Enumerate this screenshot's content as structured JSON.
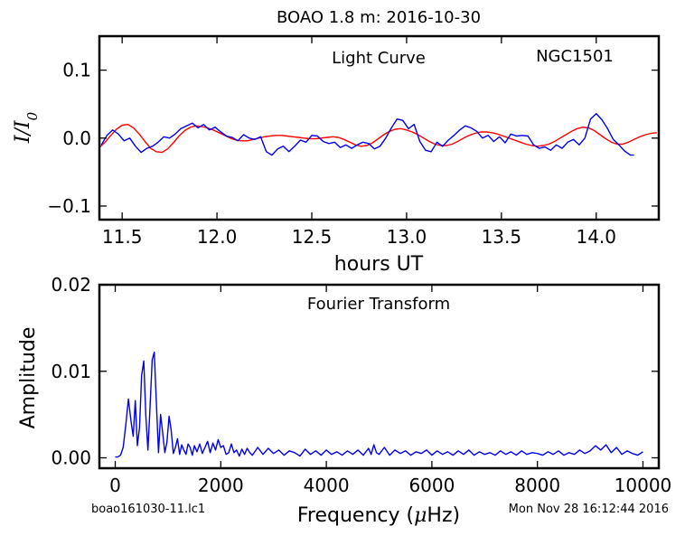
{
  "figure": {
    "title": "BOAO 1.8 m:  2016-10-30",
    "footer_left": "boao161030-11.lc1",
    "footer_right": "Mon Nov 28 16:12:44 2016"
  },
  "chart_data": [
    {
      "type": "line",
      "title": "Light Curve",
      "annotation": "NGC1501",
      "xlabel": "hours UT",
      "ylabel": "I/I0",
      "xlim": [
        11.38,
        14.33
      ],
      "ylim": [
        -0.12,
        0.15
      ],
      "xticks": [
        11.5,
        12.0,
        12.5,
        13.0,
        13.5,
        14.0
      ],
      "xtick_labels": [
        "11.5",
        "12.0",
        "12.5",
        "13.0",
        "13.5",
        "14.0"
      ],
      "yticks": [
        0.1,
        0.0,
        -0.1
      ],
      "ytick_labels": [
        "0.1",
        "0.0",
        "−0.1"
      ],
      "grid": false,
      "colors": {
        "data": "#0000ee",
        "model": "#ff0000"
      },
      "series": [
        {
          "role": "data",
          "x": [
            11.39,
            11.42,
            11.45,
            11.48,
            11.51,
            11.54,
            11.57,
            11.6,
            11.63,
            11.66,
            11.69,
            11.72,
            11.75,
            11.78,
            11.81,
            11.84,
            11.87,
            11.9,
            11.93,
            11.96,
            11.99,
            12.02,
            12.05,
            12.08,
            12.11,
            12.14,
            12.17,
            12.2,
            12.23,
            12.26,
            12.29,
            12.32,
            12.35,
            12.38,
            12.41,
            12.44,
            12.47,
            12.5,
            12.53,
            12.56,
            12.59,
            12.62,
            12.65,
            12.68,
            12.71,
            12.74,
            12.77,
            12.8,
            12.83,
            12.86,
            12.89,
            12.92,
            12.95,
            12.98,
            13.01,
            13.04,
            13.07,
            13.1,
            13.13,
            13.16,
            13.19,
            13.22,
            13.25,
            13.28,
            13.31,
            13.34,
            13.37,
            13.4,
            13.43,
            13.46,
            13.49,
            13.52,
            13.55,
            13.58,
            13.61,
            13.64,
            13.67,
            13.7,
            13.73,
            13.76,
            13.79,
            13.82,
            13.85,
            13.88,
            13.91,
            13.94,
            13.97,
            14.0,
            14.03,
            14.06,
            14.09,
            14.12,
            14.15,
            14.18,
            14.2
          ],
          "y": [
            -0.01,
            0.004,
            0.012,
            0.006,
            -0.004,
            0.0,
            -0.012,
            -0.021,
            -0.015,
            -0.012,
            -0.006,
            0.002,
            0.0,
            0.006,
            0.014,
            0.018,
            0.022,
            0.015,
            0.02,
            0.012,
            0.016,
            0.009,
            0.003,
            0.001,
            -0.004,
            0.005,
            0.0,
            -0.002,
            0.002,
            -0.02,
            -0.025,
            -0.016,
            -0.012,
            -0.02,
            -0.012,
            -0.003,
            -0.006,
            0.004,
            0.003,
            -0.005,
            -0.008,
            -0.006,
            -0.014,
            -0.01,
            -0.015,
            -0.01,
            -0.006,
            -0.008,
            -0.016,
            -0.012,
            0.0,
            0.015,
            0.028,
            0.026,
            0.014,
            0.02,
            -0.005,
            -0.018,
            -0.02,
            -0.006,
            -0.012,
            -0.003,
            0.004,
            0.012,
            0.018,
            0.015,
            0.01,
            0.0,
            0.004,
            -0.005,
            0.002,
            -0.007,
            0.006,
            0.003,
            0.004,
            0.003,
            -0.01,
            -0.015,
            -0.013,
            -0.018,
            -0.01,
            -0.015,
            -0.006,
            -0.002,
            -0.01,
            0.0,
            0.028,
            0.036,
            0.027,
            0.014,
            -0.002,
            -0.01,
            -0.019,
            -0.025,
            -0.025
          ]
        },
        {
          "role": "model",
          "x": [
            11.38,
            11.41,
            11.44,
            11.47,
            11.5,
            11.53,
            11.56,
            11.59,
            11.62,
            11.65,
            11.68,
            11.71,
            11.74,
            11.77,
            11.8,
            11.83,
            11.86,
            11.89,
            11.92,
            11.95,
            11.98,
            12.01,
            12.04,
            12.07,
            12.1,
            12.13,
            12.16,
            12.19,
            12.22,
            12.25,
            12.28,
            12.31,
            12.34,
            12.37,
            12.4,
            12.43,
            12.46,
            12.49,
            12.52,
            12.55,
            12.58,
            12.61,
            12.64,
            12.67,
            12.7,
            12.73,
            12.76,
            12.79,
            12.82,
            12.85,
            12.88,
            12.91,
            12.94,
            12.97,
            13.0,
            13.03,
            13.06,
            13.09,
            13.12,
            13.15,
            13.18,
            13.21,
            13.24,
            13.27,
            13.3,
            13.33,
            13.36,
            13.39,
            13.42,
            13.45,
            13.48,
            13.51,
            13.54,
            13.57,
            13.6,
            13.63,
            13.66,
            13.69,
            13.72,
            13.75,
            13.78,
            13.81,
            13.84,
            13.87,
            13.9,
            13.93,
            13.96,
            13.99,
            14.02,
            14.05,
            14.08,
            14.11,
            14.14,
            14.17,
            14.2,
            14.23,
            14.26,
            14.29,
            14.32
          ],
          "y": [
            -0.014,
            -0.006,
            0.004,
            0.013,
            0.019,
            0.02,
            0.015,
            0.006,
            -0.005,
            -0.015,
            -0.02,
            -0.021,
            -0.016,
            -0.007,
            0.003,
            0.011,
            0.016,
            0.018,
            0.017,
            0.015,
            0.012,
            0.008,
            0.004,
            0.0,
            -0.003,
            -0.004,
            -0.004,
            -0.002,
            0.0,
            0.002,
            0.003,
            0.004,
            0.004,
            0.003,
            0.002,
            0.001,
            0.0,
            -0.001,
            -0.001,
            0.0,
            0.001,
            0.002,
            0.001,
            -0.002,
            -0.006,
            -0.01,
            -0.012,
            -0.011,
            -0.007,
            -0.001,
            0.005,
            0.01,
            0.013,
            0.014,
            0.012,
            0.009,
            0.005,
            0.0,
            -0.005,
            -0.009,
            -0.011,
            -0.011,
            -0.009,
            -0.005,
            0.0,
            0.004,
            0.007,
            0.009,
            0.009,
            0.008,
            0.006,
            0.003,
            0.0,
            -0.003,
            -0.006,
            -0.009,
            -0.011,
            -0.012,
            -0.011,
            -0.009,
            -0.005,
            0.0,
            0.005,
            0.01,
            0.014,
            0.016,
            0.015,
            0.011,
            0.005,
            -0.001,
            -0.006,
            -0.009,
            -0.009,
            -0.006,
            -0.002,
            0.002,
            0.005,
            0.007,
            0.008
          ]
        }
      ]
    },
    {
      "type": "line",
      "title": "Fourier Transform",
      "xlabel": "Frequency (μHz)",
      "ylabel": "Amplitude",
      "xlim": [
        -300,
        10300
      ],
      "ylim": [
        -0.0012,
        0.02
      ],
      "xticks": [
        0,
        2000,
        4000,
        6000,
        8000,
        10000
      ],
      "xtick_labels": [
        "0",
        "2000",
        "4000",
        "6000",
        "8000",
        "10000"
      ],
      "yticks": [
        0.02,
        0.01,
        0.0
      ],
      "ytick_labels": [
        "0.02",
        "0.01",
        "0.00"
      ],
      "grid": false,
      "colors": {
        "data": "#0000ee"
      },
      "series": [
        {
          "role": "data",
          "x": [
            0,
            50,
            100,
            150,
            200,
            250,
            300,
            340,
            380,
            420,
            460,
            500,
            540,
            580,
            620,
            660,
            700,
            740,
            780,
            820,
            860,
            900,
            940,
            980,
            1020,
            1060,
            1100,
            1140,
            1180,
            1220,
            1260,
            1300,
            1340,
            1380,
            1420,
            1460,
            1500,
            1550,
            1600,
            1650,
            1700,
            1750,
            1800,
            1850,
            1900,
            1950,
            2000,
            2050,
            2100,
            2150,
            2200,
            2250,
            2300,
            2350,
            2400,
            2450,
            2500,
            2550,
            2600,
            2700,
            2800,
            2900,
            3000,
            3100,
            3200,
            3300,
            3400,
            3500,
            3600,
            3700,
            3800,
            3900,
            4000,
            4100,
            4200,
            4300,
            4400,
            4500,
            4600,
            4700,
            4800,
            4850,
            4900,
            4950,
            5000,
            5100,
            5200,
            5300,
            5400,
            5500,
            5600,
            5700,
            5800,
            5900,
            6000,
            6100,
            6200,
            6300,
            6400,
            6500,
            6600,
            6700,
            6800,
            6900,
            7000,
            7100,
            7200,
            7300,
            7400,
            7500,
            7600,
            7700,
            7800,
            7900,
            8000,
            8100,
            8200,
            8300,
            8400,
            8500,
            8600,
            8700,
            8800,
            8900,
            9000,
            9100,
            9200,
            9300,
            9400,
            9500,
            9600,
            9700,
            9800,
            9900,
            10000
          ],
          "y": [
            0.0001,
            0.0001,
            0.0003,
            0.0012,
            0.0038,
            0.0068,
            0.0042,
            0.0025,
            0.0066,
            0.0014,
            0.0035,
            0.0095,
            0.0112,
            0.0048,
            0.0009,
            0.006,
            0.0113,
            0.0122,
            0.0062,
            0.0006,
            0.005,
            0.0028,
            0.0006,
            0.0018,
            0.0048,
            0.0032,
            0.0005,
            0.0012,
            0.0022,
            0.0004,
            0.0015,
            0.0009,
            0.0004,
            0.0016,
            0.0012,
            0.0003,
            0.0014,
            0.0007,
            0.0016,
            0.0005,
            0.0012,
            0.0019,
            0.0006,
            0.0017,
            0.0009,
            0.0021,
            0.0012,
            0.0014,
            0.0004,
            0.0006,
            0.0016,
            0.0006,
            0.0009,
            0.0002,
            0.001,
            0.0004,
            0.0011,
            0.0006,
            0.0003,
            0.0012,
            0.0004,
            0.0011,
            0.0005,
            0.0009,
            0.0003,
            0.0008,
            0.0006,
            0.0002,
            0.001,
            0.0004,
            0.0008,
            0.0003,
            0.0009,
            0.0004,
            0.0007,
            0.0003,
            0.0008,
            0.0004,
            0.0009,
            0.0003,
            0.0011,
            0.0004,
            0.0015,
            0.0006,
            0.0004,
            0.0012,
            0.0003,
            0.0009,
            0.0005,
            0.0008,
            0.0003,
            0.0007,
            0.0005,
            0.0009,
            0.0003,
            0.0008,
            0.0004,
            0.0007,
            0.0003,
            0.0008,
            0.0004,
            0.0009,
            0.0003,
            0.0007,
            0.0004,
            0.0006,
            0.0003,
            0.0008,
            0.0004,
            0.0007,
            0.0003,
            0.0008,
            0.0004,
            0.0006,
            0.0005,
            0.0003,
            0.0007,
            0.0004,
            0.0008,
            0.0003,
            0.0006,
            0.0004,
            0.0009,
            0.0005,
            0.0008,
            0.0014,
            0.0009,
            0.0015,
            0.0006,
            0.0012,
            0.0004,
            0.0008,
            0.0005,
            0.0003,
            0.0007
          ]
        }
      ]
    }
  ]
}
